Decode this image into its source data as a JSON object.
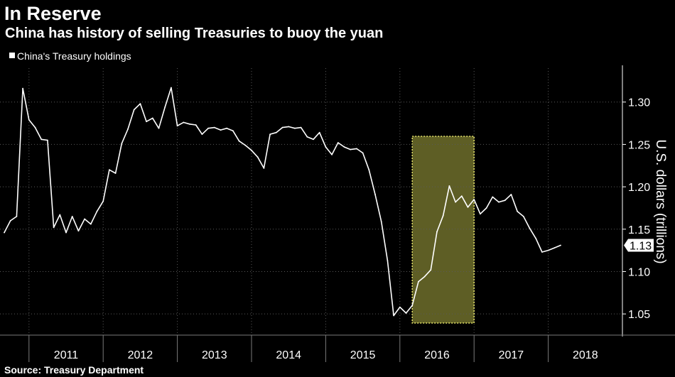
{
  "chart_data": {
    "type": "line",
    "title": "In Reserve",
    "subtitle": "China has history of selling Treasuries to buoy the yuan",
    "source": "Source: Treasury Department",
    "ylabel": "U.S. dollars (trillions)",
    "ylim": [
      1.025,
      1.34
    ],
    "y_ticks": [
      "1.05",
      "1.10",
      "1.15",
      "1.20",
      "1.25",
      "1.30"
    ],
    "x_start": "2010-09",
    "x_end": "2018-12",
    "years": [
      "2011",
      "2012",
      "2013",
      "2014",
      "2015",
      "2016",
      "2017",
      "2018"
    ],
    "grid": true,
    "legend_position": "top-left",
    "last_value_label": "1.13",
    "highlight": {
      "start": "2016-03",
      "end": "2017-01",
      "color": "#6e6e2c"
    },
    "series": [
      {
        "name": "China's Treasury holdings",
        "color": "#ffffff",
        "points": [
          [
            "2010-09",
            1.146
          ],
          [
            "2010-10",
            1.16
          ],
          [
            "2010-11",
            1.165
          ],
          [
            "2010-12",
            1.316
          ],
          [
            "2011-01",
            1.279
          ],
          [
            "2011-02",
            1.27
          ],
          [
            "2011-03",
            1.256
          ],
          [
            "2011-04",
            1.255
          ],
          [
            "2011-05",
            1.152
          ],
          [
            "2011-06",
            1.167
          ],
          [
            "2011-07",
            1.146
          ],
          [
            "2011-08",
            1.165
          ],
          [
            "2011-09",
            1.148
          ],
          [
            "2011-10",
            1.162
          ],
          [
            "2011-11",
            1.156
          ],
          [
            "2011-12",
            1.171
          ],
          [
            "2012-01",
            1.183
          ],
          [
            "2012-02",
            1.22
          ],
          [
            "2012-03",
            1.216
          ],
          [
            "2012-04",
            1.251
          ],
          [
            "2012-05",
            1.268
          ],
          [
            "2012-06",
            1.291
          ],
          [
            "2012-07",
            1.298
          ],
          [
            "2012-08",
            1.277
          ],
          [
            "2012-09",
            1.281
          ],
          [
            "2012-10",
            1.269
          ],
          [
            "2012-11",
            1.294
          ],
          [
            "2012-12",
            1.317
          ],
          [
            "2013-01",
            1.272
          ],
          [
            "2013-02",
            1.276
          ],
          [
            "2013-03",
            1.274
          ],
          [
            "2013-04",
            1.273
          ],
          [
            "2013-05",
            1.262
          ],
          [
            "2013-06",
            1.269
          ],
          [
            "2013-07",
            1.27
          ],
          [
            "2013-08",
            1.267
          ],
          [
            "2013-09",
            1.269
          ],
          [
            "2013-10",
            1.266
          ],
          [
            "2013-11",
            1.254
          ],
          [
            "2013-12",
            1.249
          ],
          [
            "2014-01",
            1.243
          ],
          [
            "2014-02",
            1.235
          ],
          [
            "2014-03",
            1.222
          ],
          [
            "2014-04",
            1.262
          ],
          [
            "2014-05",
            1.264
          ],
          [
            "2014-06",
            1.27
          ],
          [
            "2014-07",
            1.271
          ],
          [
            "2014-08",
            1.269
          ],
          [
            "2014-09",
            1.27
          ],
          [
            "2014-10",
            1.259
          ],
          [
            "2014-11",
            1.256
          ],
          [
            "2014-12",
            1.264
          ],
          [
            "2015-01",
            1.247
          ],
          [
            "2015-02",
            1.238
          ],
          [
            "2015-03",
            1.252
          ],
          [
            "2015-04",
            1.247
          ],
          [
            "2015-05",
            1.244
          ],
          [
            "2015-06",
            1.245
          ],
          [
            "2015-07",
            1.24
          ],
          [
            "2015-08",
            1.22
          ],
          [
            "2015-09",
            1.191
          ],
          [
            "2015-10",
            1.159
          ],
          [
            "2015-11",
            1.113
          ],
          [
            "2015-12",
            1.048
          ],
          [
            "2016-01",
            1.058
          ],
          [
            "2016-02",
            1.051
          ],
          [
            "2016-03",
            1.06
          ],
          [
            "2016-04",
            1.088
          ],
          [
            "2016-05",
            1.094
          ],
          [
            "2016-06",
            1.102
          ],
          [
            "2016-07",
            1.147
          ],
          [
            "2016-08",
            1.166
          ],
          [
            "2016-09",
            1.201
          ],
          [
            "2016-10",
            1.182
          ],
          [
            "2016-11",
            1.189
          ],
          [
            "2016-12",
            1.176
          ],
          [
            "2017-01",
            1.185
          ],
          [
            "2017-02",
            1.168
          ],
          [
            "2017-03",
            1.175
          ],
          [
            "2017-04",
            1.188
          ],
          [
            "2017-05",
            1.182
          ],
          [
            "2017-06",
            1.184
          ],
          [
            "2017-07",
            1.191
          ],
          [
            "2017-08",
            1.171
          ],
          [
            "2017-09",
            1.165
          ],
          [
            "2017-10",
            1.151
          ],
          [
            "2017-11",
            1.139
          ],
          [
            "2017-12",
            1.123
          ],
          [
            "2018-01",
            1.125
          ],
          [
            "2018-02",
            1.128
          ],
          [
            "2018-03",
            1.131
          ]
        ]
      }
    ]
  }
}
